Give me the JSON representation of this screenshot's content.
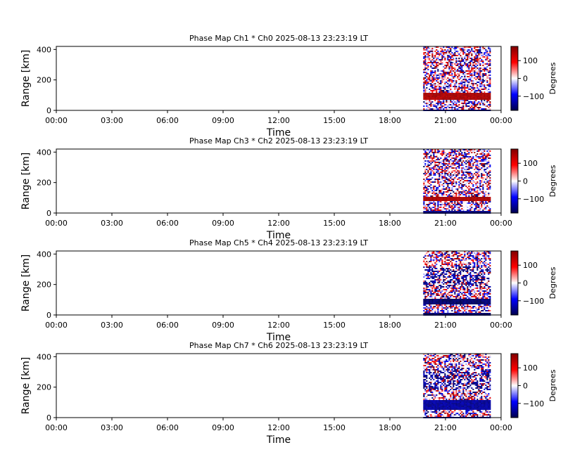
{
  "chart_data": [
    {
      "type": "heatmap",
      "title": "Phase Map Ch1 * Ch0 2025-08-13 23:23:19 LT",
      "xlabel": "Time",
      "ylabel": "Range [km]",
      "x_ticks": [
        "00:00",
        "03:00",
        "06:00",
        "09:00",
        "12:00",
        "15:00",
        "18:00",
        "21:00",
        "00:00"
      ],
      "y_ticks": [
        0,
        200,
        400
      ],
      "xlim_hours": [
        0,
        24
      ],
      "ylim_km": [
        0,
        420
      ],
      "data_extent_hours": [
        19.8,
        23.4
      ],
      "colorbar": {
        "label": "Degrees",
        "ticks": [
          -100,
          0,
          100
        ],
        "range": [
          -180,
          180
        ],
        "colors": [
          "#00004c",
          "#0000ff",
          "#ffffff",
          "#ff0000",
          "#800000"
        ]
      },
      "bands": [
        {
          "y_km": [
            0,
            8
          ],
          "phase": -150
        },
        {
          "y_km": [
            75,
            120
          ],
          "phase": 150
        }
      ]
    },
    {
      "type": "heatmap",
      "title": "Phase Map Ch3 * Ch2 2025-08-13 23:23:19 LT",
      "xlabel": "Time",
      "ylabel": "Range [km]",
      "x_ticks": [
        "00:00",
        "03:00",
        "06:00",
        "09:00",
        "12:00",
        "15:00",
        "18:00",
        "21:00",
        "00:00"
      ],
      "y_ticks": [
        0,
        200,
        400
      ],
      "xlim_hours": [
        0,
        24
      ],
      "ylim_km": [
        0,
        420
      ],
      "data_extent_hours": [
        19.8,
        23.4
      ],
      "colorbar": {
        "label": "Degrees",
        "ticks": [
          -100,
          0,
          100
        ],
        "range": [
          -180,
          180
        ],
        "colors": [
          "#00004c",
          "#0000ff",
          "#ffffff",
          "#ff0000",
          "#800000"
        ]
      },
      "bands": [
        {
          "y_km": [
            0,
            20
          ],
          "phase": -150
        },
        {
          "y_km": [
            80,
            115
          ],
          "phase": 150
        }
      ]
    },
    {
      "type": "heatmap",
      "title": "Phase Map Ch5 * Ch4 2025-08-13 23:23:19 LT",
      "xlabel": "Time",
      "ylabel": "Range [km]",
      "x_ticks": [
        "00:00",
        "03:00",
        "06:00",
        "09:00",
        "12:00",
        "15:00",
        "18:00",
        "21:00",
        "00:00"
      ],
      "y_ticks": [
        0,
        200,
        400
      ],
      "xlim_hours": [
        0,
        24
      ],
      "ylim_km": [
        0,
        420
      ],
      "data_extent_hours": [
        19.8,
        23.4
      ],
      "colorbar": {
        "label": "Degrees",
        "ticks": [
          -100,
          0,
          100
        ],
        "range": [
          -180,
          180
        ],
        "colors": [
          "#00004c",
          "#0000ff",
          "#ffffff",
          "#ff0000",
          "#800000"
        ]
      },
      "bands": [
        {
          "y_km": [
            0,
            15
          ],
          "phase": -160
        },
        {
          "y_km": [
            70,
            110
          ],
          "phase": -165
        }
      ]
    },
    {
      "type": "heatmap",
      "title": "Phase Map Ch7 * Ch6 2025-08-13 23:23:19 LT",
      "xlabel": "Time",
      "ylabel": "Range [km]",
      "x_ticks": [
        "00:00",
        "03:00",
        "06:00",
        "09:00",
        "12:00",
        "15:00",
        "18:00",
        "21:00",
        "00:00"
      ],
      "y_ticks": [
        0,
        200,
        400
      ],
      "xlim_hours": [
        0,
        24
      ],
      "ylim_km": [
        0,
        420
      ],
      "data_extent_hours": [
        19.8,
        23.4
      ],
      "colorbar": {
        "label": "Degrees",
        "ticks": [
          -100,
          0,
          100
        ],
        "range": [
          -180,
          180
        ],
        "colors": [
          "#00004c",
          "#0000ff",
          "#ffffff",
          "#ff0000",
          "#800000"
        ]
      },
      "bands": [
        {
          "y_km": [
            0,
            6
          ],
          "phase": -150
        },
        {
          "y_km": [
            60,
            120
          ],
          "phase": -140
        }
      ]
    }
  ]
}
